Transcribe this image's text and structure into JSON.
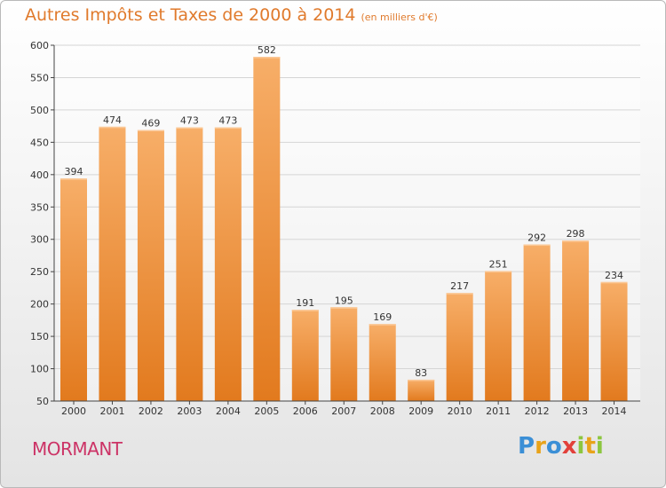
{
  "title": "Autres Impôts et Taxes de 2000 à 2014",
  "unit_note": "(en milliers d'€)",
  "city": "MORMANT",
  "logo": {
    "text": "Proxiti",
    "letters": [
      "P",
      "r",
      "o",
      "x",
      "i",
      "t",
      "i"
    ]
  },
  "colors": {
    "bar_light": "#f7ae68",
    "bar_dark": "#e27a1e",
    "title": "#e07a2c",
    "city": "#cc3366",
    "grid": "#d5d5d5"
  },
  "chart_data": {
    "type": "bar",
    "categories": [
      "2000",
      "2001",
      "2002",
      "2003",
      "2004",
      "2005",
      "2006",
      "2007",
      "2008",
      "2009",
      "2010",
      "2011",
      "2012",
      "2013",
      "2014"
    ],
    "values": [
      394,
      474,
      469,
      473,
      473,
      582,
      191,
      195,
      169,
      83,
      217,
      251,
      292,
      298,
      234
    ],
    "ylim": [
      50,
      600
    ],
    "yticks": [
      50,
      100,
      150,
      200,
      250,
      300,
      350,
      400,
      450,
      500,
      550,
      600
    ],
    "grid": true,
    "title": "Autres Impôts et Taxes de 2000 à 2014",
    "xlabel": "",
    "ylabel": ""
  }
}
